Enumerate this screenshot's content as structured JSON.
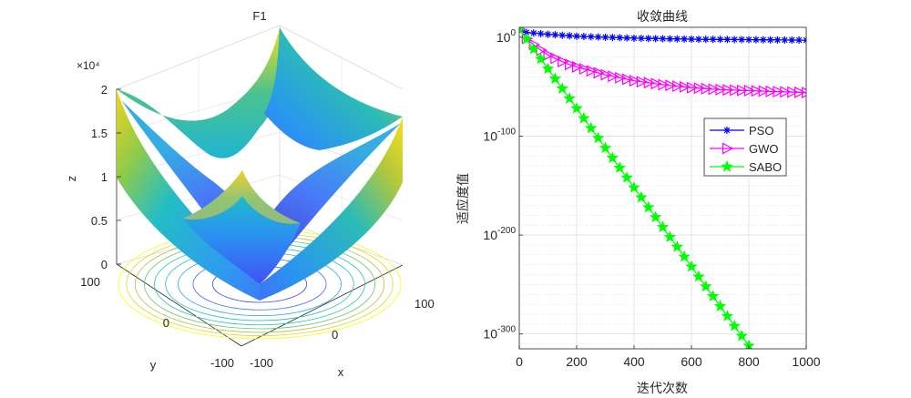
{
  "chart_data": [
    {
      "type": "surface3d",
      "title": "F1",
      "xlabel": "x",
      "ylabel": "y",
      "zlabel": "z",
      "exponent_label": "×10⁴",
      "function": "z = x^2 + y^2",
      "xlim": [
        -100,
        100
      ],
      "ylim": [
        -100,
        100
      ],
      "zlim": [
        0,
        20000
      ],
      "x_ticks": [
        "-100",
        "0",
        "100"
      ],
      "y_ticks": [
        "-100",
        "0",
        "100"
      ],
      "z_ticks": [
        "0",
        "0.5",
        "1",
        "1.5",
        "2"
      ],
      "colormap": [
        "#3e26a8",
        "#4367fd",
        "#1fb9d4",
        "#33cc8f",
        "#c5bd3a",
        "#f9fb0e"
      ],
      "contour_levels": 9
    },
    {
      "type": "line",
      "title": "收敛曲线",
      "xlabel": "迭代次数",
      "ylabel": "适应度值",
      "yscale": "log",
      "xlim": [
        0,
        1000
      ],
      "y_exp_range": [
        -315,
        10
      ],
      "x_ticks": [
        "0",
        "200",
        "400",
        "600",
        "800",
        "1000"
      ],
      "y_ticks": [
        {
          "base": "10",
          "exp": "0",
          "value_exp": 0
        },
        {
          "base": "10",
          "exp": "-100",
          "value_exp": -100
        },
        {
          "base": "10",
          "exp": "-200",
          "value_exp": -200
        },
        {
          "base": "10",
          "exp": "-300",
          "value_exp": -300
        }
      ],
      "grid": true,
      "legend_position": "right",
      "series": [
        {
          "name": "PSO",
          "color": "#0000ff",
          "marker": "asterisk",
          "x": [
            0,
            20,
            100,
            200,
            400,
            600,
            800,
            1000
          ],
          "log10_y": [
            8,
            5,
            3,
            1,
            -1,
            -2,
            -2.5,
            -3
          ]
        },
        {
          "name": "GWO",
          "color": "#ff00ff",
          "marker": "triangle-right",
          "x": [
            0,
            20,
            60,
            100,
            160,
            200,
            300,
            400,
            500,
            600,
            700,
            800,
            900,
            1000
          ],
          "log10_y": [
            8,
            0,
            -10,
            -18,
            -26,
            -30,
            -38,
            -44,
            -48,
            -51,
            -53,
            -54,
            -55,
            -56
          ]
        },
        {
          "name": "SABO",
          "color": "#00ff00",
          "marker": "star",
          "x": [
            0,
            100,
            200,
            300,
            400,
            500,
            600,
            700,
            800
          ],
          "log10_y": [
            8,
            -32,
            -72,
            -112,
            -152,
            -192,
            -232,
            -272,
            -312
          ]
        }
      ]
    }
  ]
}
